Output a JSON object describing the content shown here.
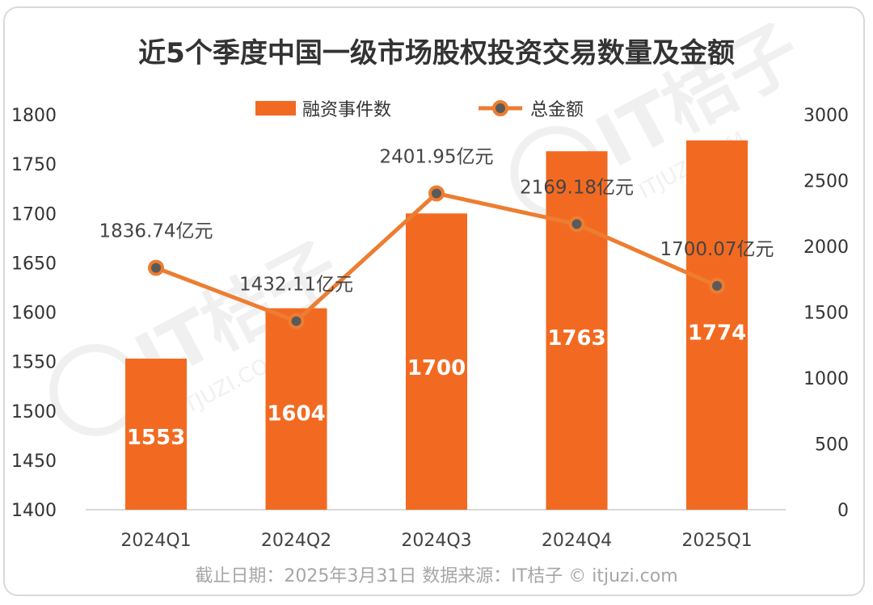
{
  "chart_data": {
    "type": "bar+line",
    "title": "近5个季度中国一级市场股权投资交易数量及金额",
    "categories": [
      "2024Q1",
      "2024Q2",
      "2024Q3",
      "2024Q4",
      "2025Q1"
    ],
    "left_axis": {
      "min": 1400,
      "max": 1800,
      "step": 50,
      "ticks": [
        "1400",
        "1450",
        "1500",
        "1550",
        "1600",
        "1650",
        "1700",
        "1750",
        "1800"
      ]
    },
    "right_axis": {
      "min": 0,
      "max": 3000,
      "step": 500,
      "ticks": [
        "0",
        "500",
        "1000",
        "1500",
        "2000",
        "2500",
        "3000"
      ]
    },
    "series": [
      {
        "name": "融资事件数",
        "type": "bar",
        "axis": "left",
        "values": [
          1553,
          1604,
          1700,
          1763,
          1774
        ],
        "labels": [
          "1553",
          "1604",
          "1700",
          "1763",
          "1774"
        ]
      },
      {
        "name": "总金额",
        "type": "line",
        "axis": "right",
        "values": [
          1836.74,
          1432.11,
          2401.95,
          2169.18,
          1700.07
        ],
        "labels": [
          "1836.74亿元",
          "1432.11亿元",
          "2401.95亿元",
          "2169.18亿元",
          "1700.07亿元"
        ]
      }
    ],
    "legend_position": "top-center",
    "grid": false
  },
  "colors": {
    "bar": "#f26a21",
    "line": "#ed7d31",
    "marker_fill": "#5a5a5a",
    "axis": "#d9d9d9"
  },
  "footer": "截止日期：2025年3月31日     数据来源：IT桔子 © itjuzi.com",
  "watermark": {
    "brand": "IT桔子",
    "site": "ITJUZI.COM"
  }
}
